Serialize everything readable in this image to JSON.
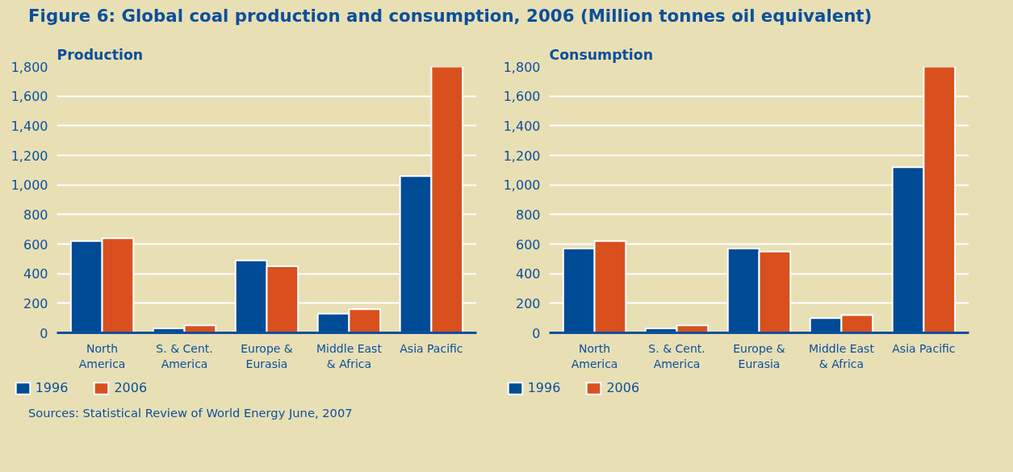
{
  "chart_data": [
    {
      "type": "bar",
      "title": "Figure 6: Global coal production and consumption, 2006 (Million tonnes oil equivalent)",
      "subtitle": "Production",
      "categories": [
        "North America",
        "S. & Cent. America",
        "Europe & Eurasia",
        "Middle East & Africa",
        "Asia Pacific"
      ],
      "series": [
        {
          "name": "1996",
          "color": "#004b96",
          "values": [
            620,
            30,
            490,
            130,
            1060
          ]
        },
        {
          "name": "2006",
          "color": "#d9501e",
          "values": [
            640,
            50,
            450,
            160,
            1800
          ]
        }
      ],
      "ylim": [
        0,
        1800
      ],
      "yticks": [
        0,
        200,
        400,
        600,
        800,
        {
          "value": 1000,
          "label": "1,000"
        },
        {
          "value": 1200,
          "label": "1,200"
        },
        {
          "value": 1400,
          "label": "1,400"
        },
        {
          "value": 1600,
          "label": "1,600"
        },
        {
          "value": 1800,
          "label": "1,800"
        }
      ],
      "grid": "y",
      "legend": "bottom",
      "annotations": [
        "Sources: Statistical Review of World Energy June, 2007"
      ]
    },
    {
      "type": "bar",
      "subtitle": "Consumption",
      "categories": [
        "North America",
        "S. & Cent. America",
        "Europe & Eurasia",
        "Middle East & Africa",
        "Asia Pacific"
      ],
      "series": [
        {
          "name": "1996",
          "color": "#004b96",
          "values": [
            570,
            30,
            570,
            100,
            1120
          ]
        },
        {
          "name": "2006",
          "color": "#d9501e",
          "values": [
            620,
            50,
            550,
            120,
            1800
          ]
        }
      ],
      "ylim": [
        0,
        1800
      ],
      "yticks": [
        0,
        200,
        400,
        600,
        800,
        {
          "value": 1000,
          "label": "1,000"
        },
        {
          "value": 1200,
          "label": "1,200"
        },
        {
          "value": 1400,
          "label": "1,400"
        },
        {
          "value": 1600,
          "label": "1,600"
        },
        {
          "value": 1800,
          "label": "1,800"
        }
      ],
      "grid": "y",
      "legend": "bottom"
    }
  ]
}
